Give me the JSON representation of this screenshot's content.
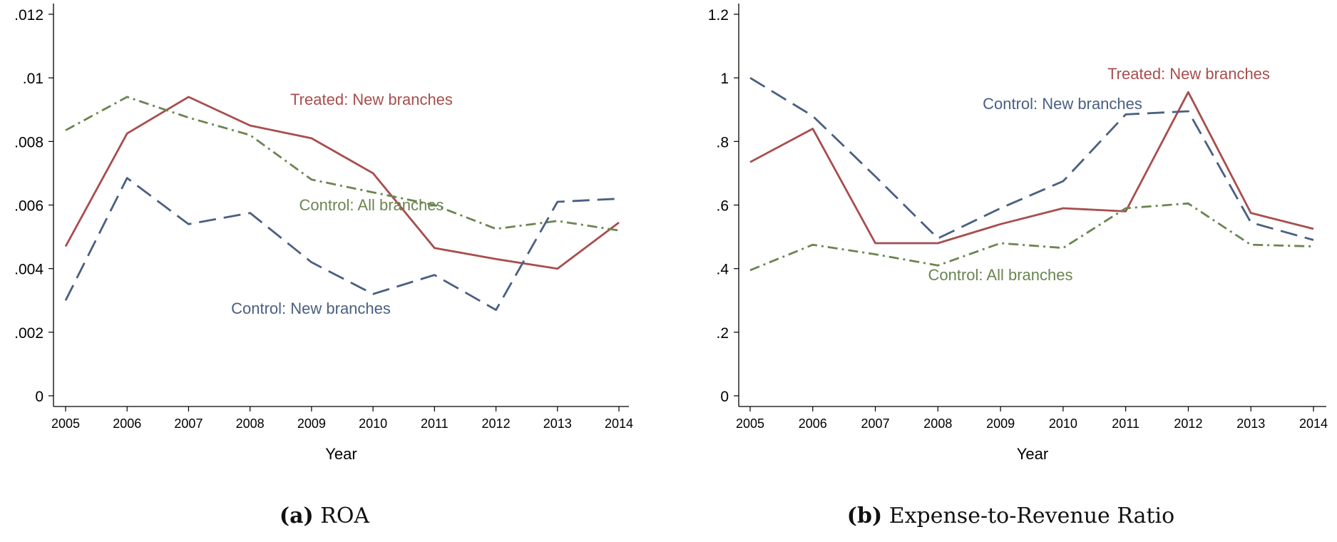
{
  "chart_data": [
    {
      "type": "line",
      "panel_label": "(a)",
      "caption": "ROA",
      "xlabel": "Year",
      "ylabel": "",
      "x": [
        2005,
        2006,
        2007,
        2008,
        2009,
        2010,
        2011,
        2012,
        2013,
        2014
      ],
      "x_tick_labels": [
        "2005",
        "2006",
        "2007",
        "2008",
        "2009",
        "2010",
        "2011",
        "2012",
        "2013",
        "2014"
      ],
      "ylim": [
        0,
        0.012
      ],
      "y_ticks": [
        0,
        0.002,
        0.004,
        0.006,
        0.008,
        0.01,
        0.012
      ],
      "y_tick_labels": [
        "0",
        ".002",
        ".004",
        ".006",
        ".008",
        ".01",
        ".012"
      ],
      "grid": false,
      "series": [
        {
          "name": "Treated: New branches",
          "color": "#a84d4d",
          "style": "solid",
          "values": [
            0.0047,
            0.00825,
            0.0094,
            0.0085,
            0.0081,
            0.007,
            0.00465,
            0.0043,
            0.004,
            0.00545
          ]
        },
        {
          "name": "Control: All branches",
          "color": "#6b8550",
          "style": "dashdot",
          "values": [
            0.00835,
            0.0094,
            0.00875,
            0.0082,
            0.0068,
            0.0064,
            0.006,
            0.00525,
            0.0055,
            0.0052
          ]
        },
        {
          "name": "Control: New branches",
          "color": "#4a5f82",
          "style": "longdash",
          "values": [
            0.003,
            0.00685,
            0.0054,
            0.00575,
            0.0042,
            0.0032,
            0.0038,
            0.0027,
            0.0061,
            0.0062
          ]
        }
      ]
    },
    {
      "type": "line",
      "panel_label": "(b)",
      "caption": "Expense-to-Revenue Ratio",
      "xlabel": "Year",
      "ylabel": "",
      "x": [
        2005,
        2006,
        2007,
        2008,
        2009,
        2010,
        2011,
        2012,
        2013,
        2014
      ],
      "x_tick_labels": [
        "2005",
        "2006",
        "2007",
        "2008",
        "2009",
        "2010",
        "2011",
        "2012",
        "2013",
        "2014"
      ],
      "ylim": [
        0,
        1.2
      ],
      "y_ticks": [
        0,
        0.2,
        0.4,
        0.6,
        0.8,
        1.0,
        1.2
      ],
      "y_tick_labels": [
        "0",
        ".2",
        ".4",
        ".6",
        ".8",
        "1",
        "1.2"
      ],
      "grid": false,
      "series": [
        {
          "name": "Treated: New branches",
          "color": "#a84d4d",
          "style": "solid",
          "values": [
            0.735,
            0.84,
            0.48,
            0.48,
            0.54,
            0.59,
            0.58,
            0.955,
            0.575,
            0.525
          ]
        },
        {
          "name": "Control: New branches",
          "color": "#4a5f82",
          "style": "longdash",
          "values": [
            1.0,
            0.88,
            0.69,
            0.495,
            0.59,
            0.675,
            0.885,
            0.895,
            0.545,
            0.49
          ]
        },
        {
          "name": "Control: All branches",
          "color": "#6b8550",
          "style": "dashdot",
          "values": [
            0.395,
            0.475,
            0.445,
            0.41,
            0.48,
            0.465,
            0.59,
            0.605,
            0.475,
            0.47
          ]
        }
      ]
    }
  ]
}
